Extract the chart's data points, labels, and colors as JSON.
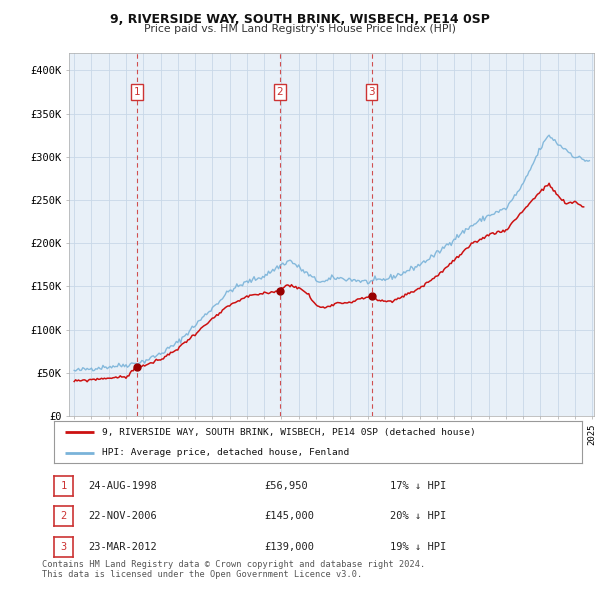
{
  "title": "9, RIVERSIDE WAY, SOUTH BRINK, WISBECH, PE14 0SP",
  "subtitle": "Price paid vs. HM Land Registry's House Price Index (HPI)",
  "ylim": [
    0,
    420000
  ],
  "yticks": [
    0,
    50000,
    100000,
    150000,
    200000,
    250000,
    300000,
    350000,
    400000
  ],
  "ytick_labels": [
    "£0",
    "£50K",
    "£100K",
    "£150K",
    "£200K",
    "£250K",
    "£300K",
    "£350K",
    "£400K"
  ],
  "hpi_color": "#7ab3d9",
  "price_color": "#cc1111",
  "vline_color": "#cc3333",
  "background_color": "#ffffff",
  "chart_bg_color": "#e8f0f8",
  "grid_color": "#c8d8e8",
  "legend_label_price": "9, RIVERSIDE WAY, SOUTH BRINK, WISBECH, PE14 0SP (detached house)",
  "legend_label_hpi": "HPI: Average price, detached house, Fenland",
  "transactions": [
    {
      "num": 1,
      "date_label": "24-AUG-1998",
      "price": 56950,
      "pct": "17%",
      "year": 1998.65
    },
    {
      "num": 2,
      "date_label": "22-NOV-2006",
      "price": 145000,
      "pct": "20%",
      "year": 2006.9
    },
    {
      "num": 3,
      "date_label": "23-MAR-2012",
      "price": 139000,
      "pct": "19%",
      "year": 2012.22
    }
  ],
  "footer_lines": [
    "Contains HM Land Registry data © Crown copyright and database right 2024.",
    "This data is licensed under the Open Government Licence v3.0."
  ],
  "hpi_anchors": {
    "1995.0": 52000,
    "1996.0": 55000,
    "1997.0": 57000,
    "1998.0": 59000,
    "1999.0": 63000,
    "2000.0": 72000,
    "2001.0": 85000,
    "2002.0": 105000,
    "2003.0": 125000,
    "2004.0": 145000,
    "2005.0": 155000,
    "2006.0": 162000,
    "2007.0": 175000,
    "2007.5": 180000,
    "2008.0": 172000,
    "2009.0": 157000,
    "2009.5": 155000,
    "2010.0": 160000,
    "2011.0": 158000,
    "2012.0": 155000,
    "2013.0": 158000,
    "2014.0": 165000,
    "2015.0": 175000,
    "2016.0": 188000,
    "2017.0": 205000,
    "2018.0": 220000,
    "2019.0": 232000,
    "2020.0": 240000,
    "2021.0": 268000,
    "2022.0": 310000,
    "2022.5": 325000,
    "2023.0": 315000,
    "2023.5": 308000,
    "2024.0": 300000,
    "2024.8": 295000
  },
  "price_anchors": {
    "1995.0": 40000,
    "1996.0": 42000,
    "1997.0": 44000,
    "1998.0": 45000,
    "1998.65": 56950,
    "1999.0": 58000,
    "2000.0": 65000,
    "2001.0": 78000,
    "2002.0": 95000,
    "2003.0": 112000,
    "2004.0": 128000,
    "2005.0": 138000,
    "2006.0": 142000,
    "2006.9": 145000,
    "2007.0": 148000,
    "2007.5": 152000,
    "2008.0": 148000,
    "2008.5": 142000,
    "2009.0": 128000,
    "2009.5": 125000,
    "2010.0": 130000,
    "2011.0": 132000,
    "2012.22": 139000,
    "2012.5": 135000,
    "2013.0": 132000,
    "2013.5": 133000,
    "2014.0": 138000,
    "2015.0": 148000,
    "2016.0": 162000,
    "2017.0": 180000,
    "2018.0": 198000,
    "2019.0": 210000,
    "2020.0": 215000,
    "2021.0": 238000,
    "2022.0": 260000,
    "2022.5": 268000,
    "2023.0": 255000,
    "2023.5": 245000,
    "2024.0": 248000,
    "2024.5": 242000
  }
}
